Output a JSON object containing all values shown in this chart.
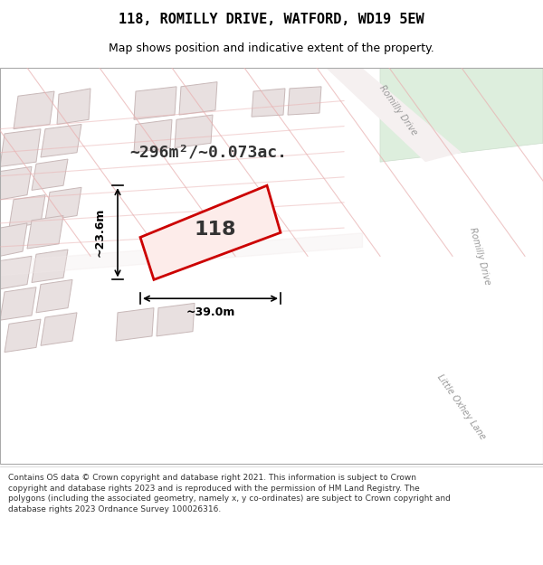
{
  "title": "118, ROMILLY DRIVE, WATFORD, WD19 5EW",
  "subtitle": "Map shows position and indicative extent of the property.",
  "area_text": "~296m²/~0.073ac.",
  "width_label": "~39.0m",
  "height_label": "~23.6m",
  "property_number": "118",
  "footer": "Contains OS data © Crown copyright and database right 2021. This information is subject to Crown copyright and database rights 2023 and is reproduced with the permission of HM Land Registry. The polygons (including the associated geometry, namely x, y co-ordinates) are subject to Crown copyright and database rights 2023 Ordnance Survey 100026316.",
  "bg_color": "#f5f0f0",
  "map_bg": "#f0eeee",
  "road_color": "#ffffff",
  "building_fill": "#e8e0e0",
  "building_stroke": "#c8b8b8",
  "highlight_fill": "#f5e8e8",
  "highlight_stroke": "#e00000",
  "green_area": "#e8efe8",
  "title_color": "#000000",
  "footer_color": "#333333"
}
